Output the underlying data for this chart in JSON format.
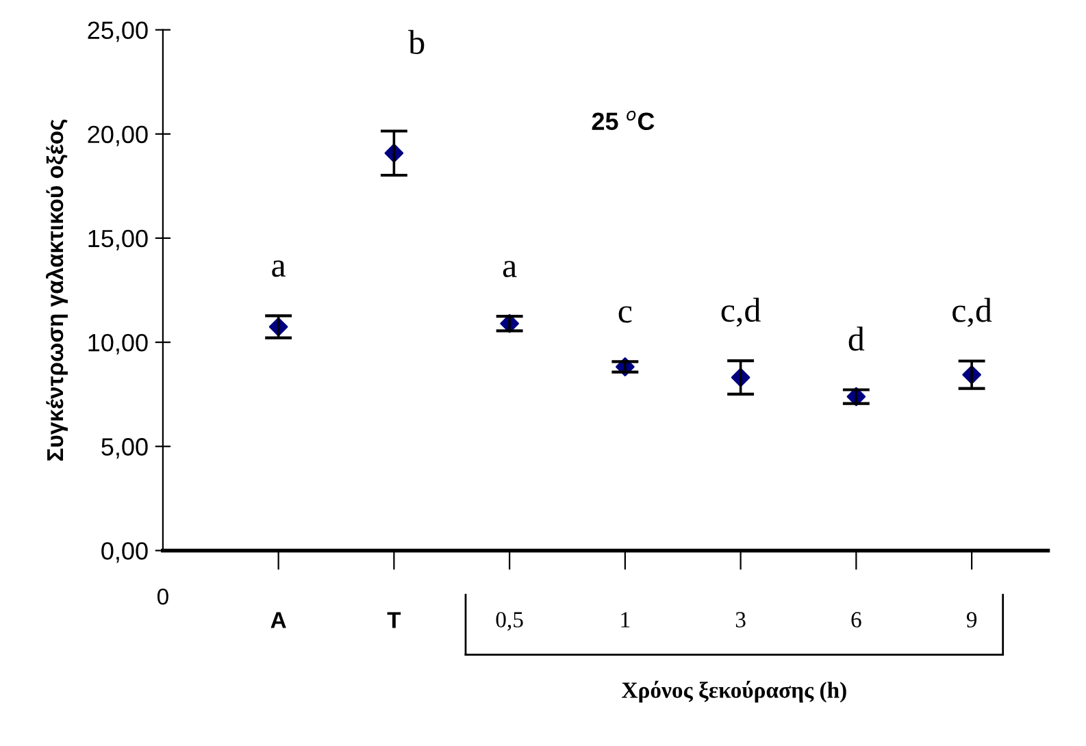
{
  "chart_data": {
    "type": "scatter",
    "ylabel": "Συγκέντρωση γαλακτικού οξέος",
    "xlabel": "Χρόνος ξεκούρασης (h)",
    "categories": [
      "0",
      "A",
      "T",
      "0,5",
      "1",
      "3",
      "6",
      "9"
    ],
    "series": [
      {
        "color": "#000080",
        "values": [
          null,
          10.74,
          19.08,
          10.9,
          8.82,
          8.31,
          7.39,
          8.44
        ],
        "errors": [
          null,
          0.53,
          1.06,
          0.35,
          0.25,
          0.8,
          0.33,
          0.66
        ]
      }
    ],
    "marker": "diamond",
    "ylim": [
      0,
      25
    ],
    "yticks": [
      {
        "value": 0,
        "label": "0,00"
      },
      {
        "value": 5,
        "label": "5,00"
      },
      {
        "value": 10,
        "label": "10,00"
      },
      {
        "value": 15,
        "label": "15,00"
      },
      {
        "value": 20,
        "label": "20,00"
      },
      {
        "value": 25,
        "label": "25,00"
      }
    ],
    "grid": false,
    "annotations": [
      "a",
      "b",
      "a",
      "c",
      "c,d",
      "d",
      "c,d",
      "25 $^{o}$C"
    ]
  }
}
